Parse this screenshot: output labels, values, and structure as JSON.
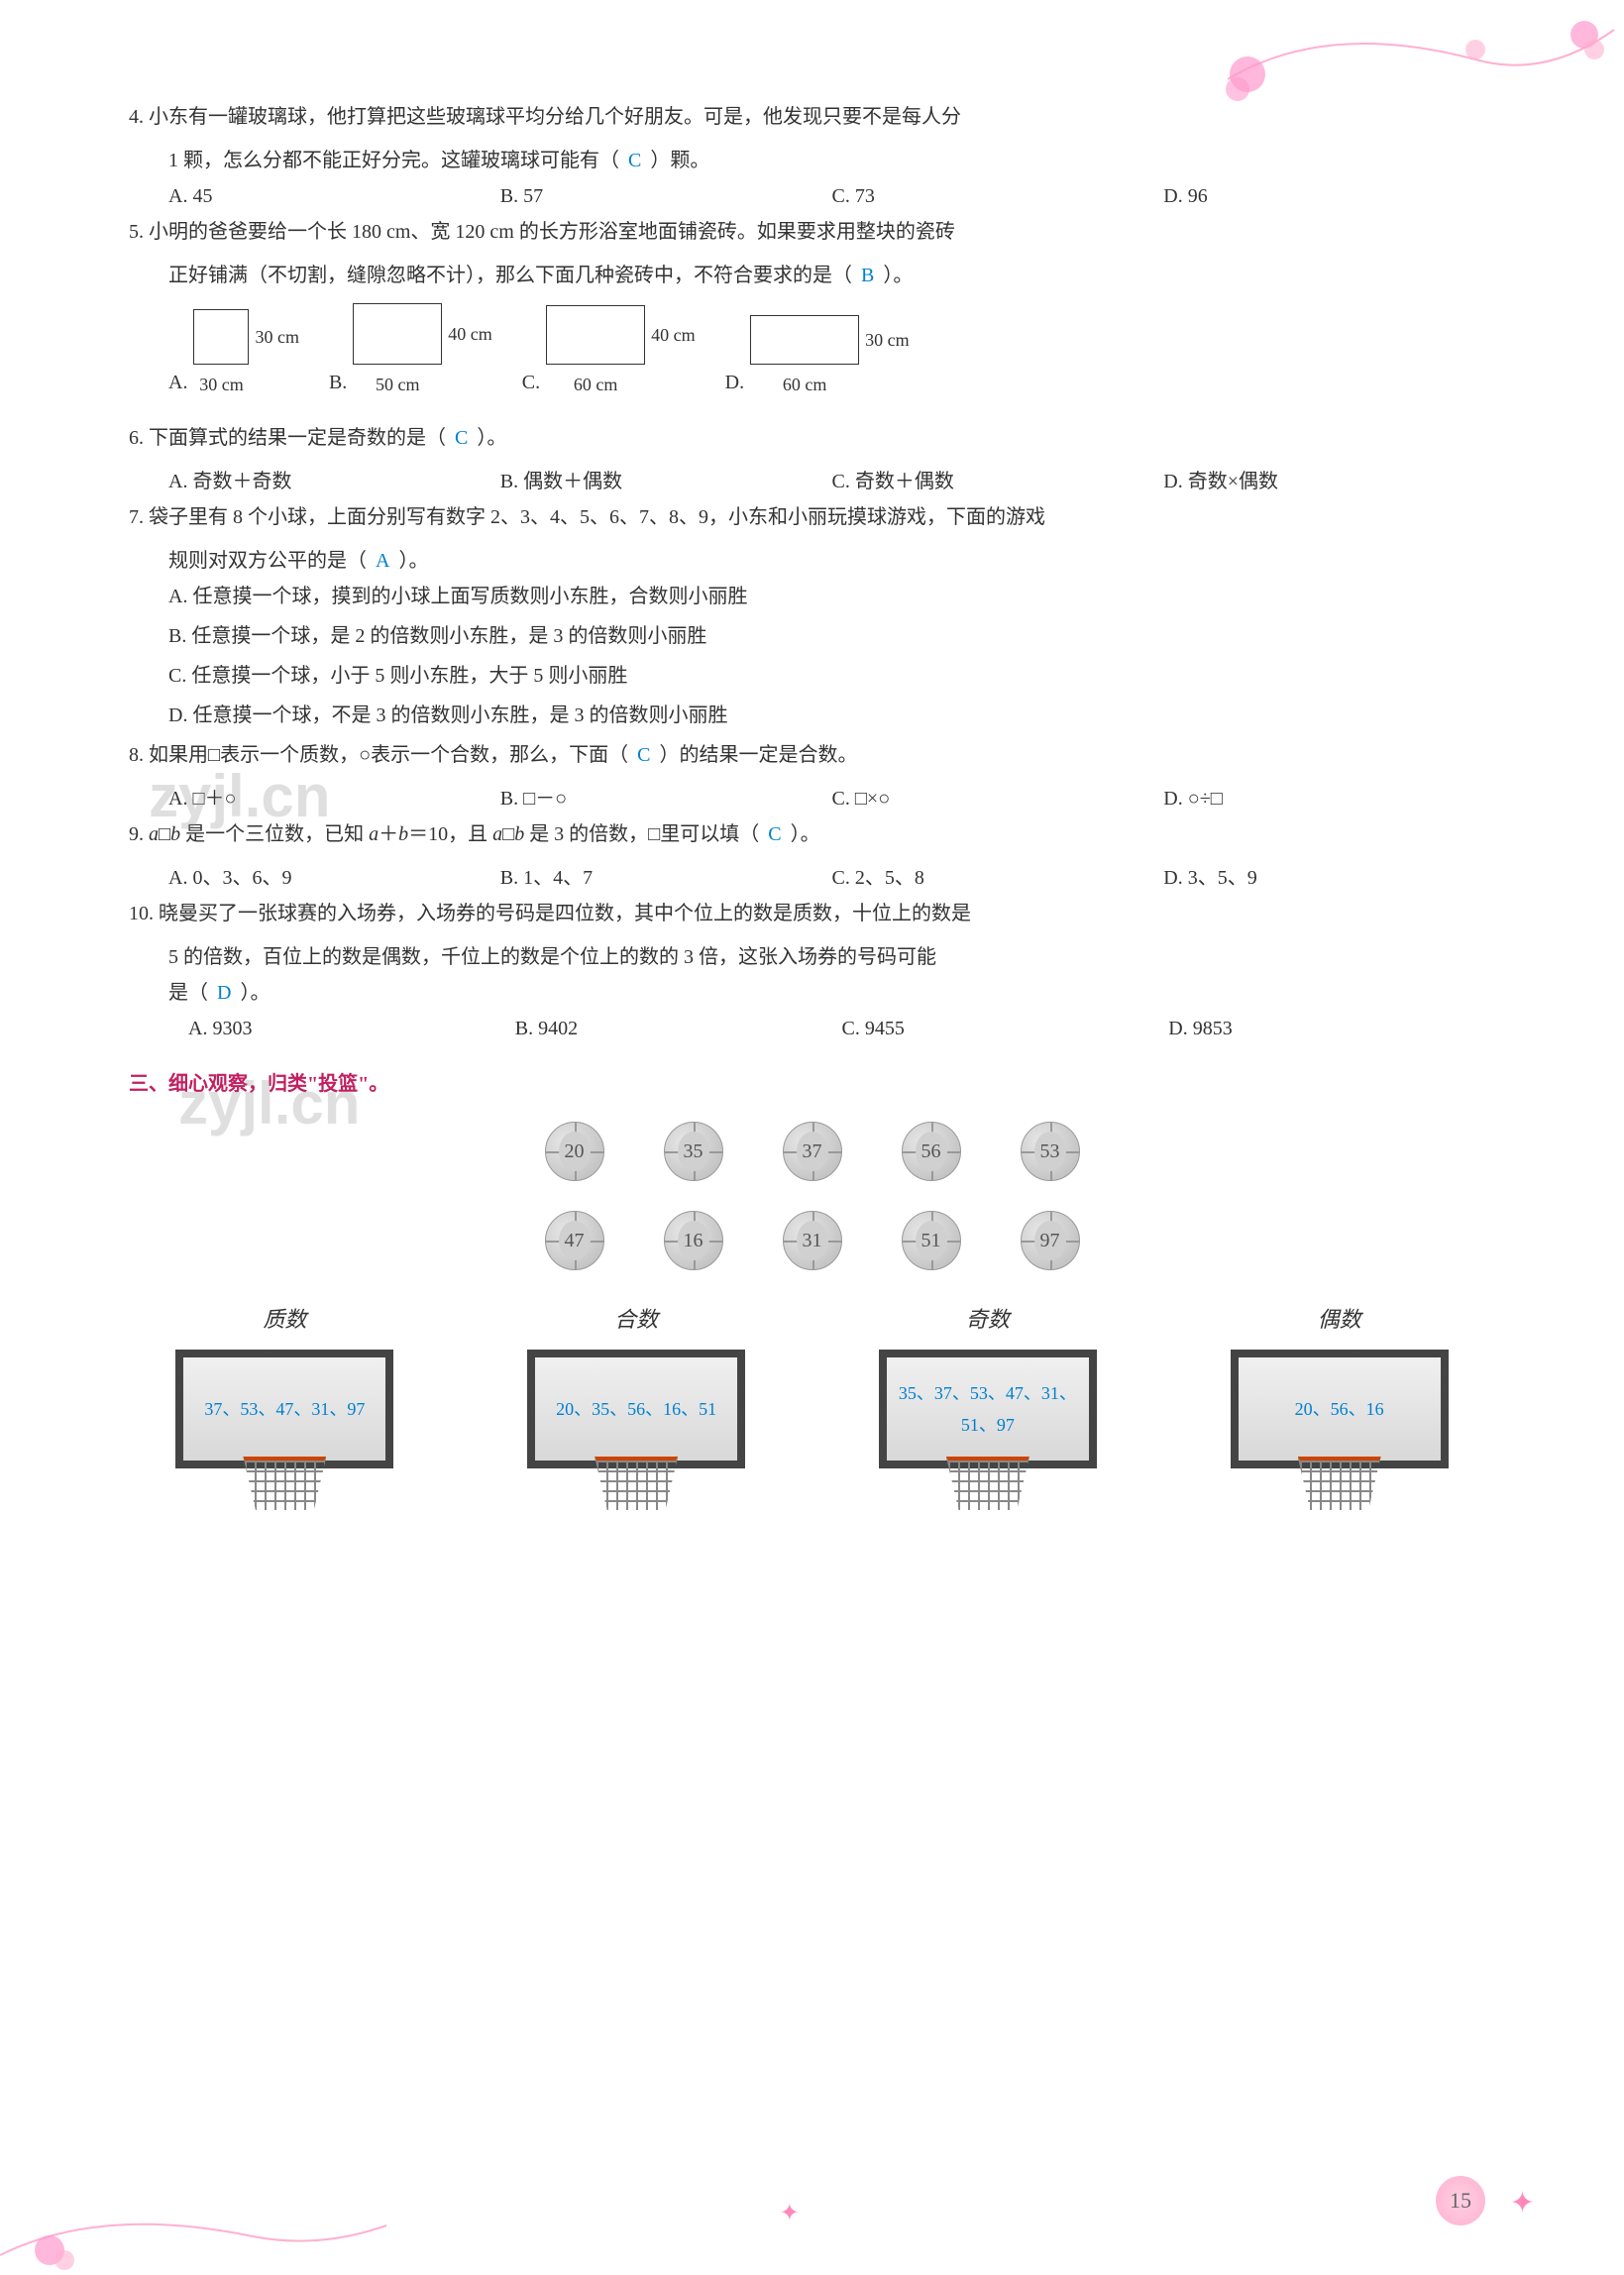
{
  "q4": {
    "num": "4.",
    "text": "小东有一罐玻璃球，他打算把这些玻璃球平均分给几个好朋友。可是，他发现只要不是每人分",
    "text2": "1 颗，怎么分都不能正好分完。这罐玻璃球可能有（",
    "text3": "）颗。",
    "answer": "C",
    "options": {
      "a": "A. 45",
      "b": "B. 57",
      "c": "C. 73",
      "d": "D. 96"
    }
  },
  "q5": {
    "num": "5.",
    "text": "小明的爸爸要给一个长 180 cm、宽 120 cm 的长方形浴室地面铺瓷砖。如果要求用整块的瓷砖",
    "text2": "正好铺满（不切割，缝隙忽略不计），那么下面几种瓷砖中，不符合要求的是（",
    "text3": "）。",
    "answer": "B",
    "rects": [
      {
        "label": "A.",
        "w": 56,
        "h": 56,
        "right": "30 cm",
        "bottom": "30 cm"
      },
      {
        "label": "B.",
        "w": 90,
        "h": 62,
        "right": "40 cm",
        "bottom": "50 cm"
      },
      {
        "label": "C.",
        "w": 100,
        "h": 60,
        "right": "40 cm",
        "bottom": "60 cm"
      },
      {
        "label": "D.",
        "w": 110,
        "h": 50,
        "right": "30 cm",
        "bottom": "60 cm"
      }
    ]
  },
  "q6": {
    "num": "6.",
    "text": "下面算式的结果一定是奇数的是（",
    "text2": "）。",
    "answer": "C",
    "options": {
      "a": "A. 奇数＋奇数",
      "b": "B. 偶数＋偶数",
      "c": "C. 奇数＋偶数",
      "d": "D. 奇数×偶数"
    }
  },
  "q7": {
    "num": "7.",
    "text": "袋子里有 8 个小球，上面分别写有数字 2、3、4、5、6、7、8、9，小东和小丽玩摸球游戏，下面的游戏",
    "text2": "规则对双方公平的是（",
    "text3": "）。",
    "answer": "A",
    "options": {
      "a": "A. 任意摸一个球，摸到的小球上面写质数则小东胜，合数则小丽胜",
      "b": "B. 任意摸一个球，是 2 的倍数则小东胜，是 3 的倍数则小丽胜",
      "c": "C. 任意摸一个球，小于 5 则小东胜，大于 5 则小丽胜",
      "d": "D. 任意摸一个球，不是 3 的倍数则小东胜，是 3 的倍数则小丽胜"
    }
  },
  "q8": {
    "num": "8.",
    "text": "如果用□表示一个质数，○表示一个合数，那么，下面（",
    "text2": "）的结果一定是合数。",
    "answer": "C",
    "options": {
      "a": "A. □＋○",
      "b": "B. □－○",
      "c": "C. □×○",
      "d": "D. ○÷□"
    }
  },
  "q9": {
    "num": "9.",
    "text_parts": {
      "p1": "a",
      "p2": "□",
      "p3": "b",
      "p4": " 是一个三位数，已知 ",
      "p5": "a",
      "p6": "＋",
      "p7": "b",
      "p8": "＝10，且 ",
      "p9": "a",
      "p10": "□",
      "p11": "b",
      "p12": " 是 3 的倍数，□里可以填（",
      "p13": "）。"
    },
    "answer": "C",
    "options": {
      "a": "A. 0、3、6、9",
      "b": "B. 1、4、7",
      "c": "C. 2、5、8",
      "d": "D. 3、5、9"
    }
  },
  "q10": {
    "num": "10.",
    "text": "晓曼买了一张球赛的入场券，入场券的号码是四位数，其中个位上的数是质数，十位上的数是",
    "text2": "5 的倍数，百位上的数是偶数，千位上的数是个位上的数的 3 倍，这张入场券的号码可能",
    "text3": "是（",
    "text4": "）。",
    "answer": "D",
    "options": {
      "a": "A. 9303",
      "b": "B. 9402",
      "c": "C. 9455",
      "d": "D. 9853"
    }
  },
  "section3": {
    "title": "三、细心观察，归类\"投篮\"。",
    "balls_row1": [
      "20",
      "35",
      "37",
      "56",
      "53"
    ],
    "balls_row2": [
      "47",
      "16",
      "31",
      "51",
      "97"
    ],
    "hoops": [
      {
        "label": "质数",
        "answer": "37、53、47、31、97"
      },
      {
        "label": "合数",
        "answer": "20、35、56、16、51"
      },
      {
        "label": "奇数",
        "answer": "35、37、53、47、31、51、97"
      },
      {
        "label": "偶数",
        "answer": "20、56、16"
      }
    ]
  },
  "page_number": "15",
  "colors": {
    "answer_color": "#0080d0",
    "section_title_color": "#c02060",
    "decoration_color": "#ff88bb"
  }
}
